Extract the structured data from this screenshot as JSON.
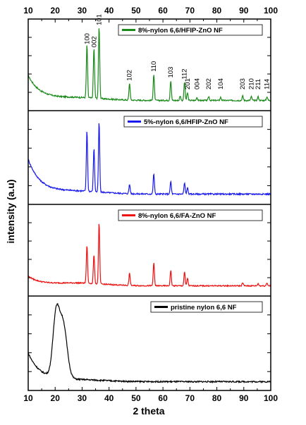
{
  "chart_data": {
    "type": "line",
    "xlabel": "2 theta",
    "ylabel": "intensity (a.u)",
    "xlim": [
      10,
      100
    ],
    "xticks": [
      "10",
      "20",
      "30",
      "40",
      "50",
      "60",
      "70",
      "80",
      "90",
      "100"
    ],
    "panels": [
      {
        "legend": "8%-nylon 6,6/HFIP-ZnO NF",
        "color": "#1a8a1a",
        "baseline_start": 0.38,
        "baseline_end": 0.06,
        "noise": 0.018,
        "hump": [],
        "peaks": [
          {
            "x": 31.8,
            "h": 0.7
          },
          {
            "x": 34.4,
            "h": 0.66
          },
          {
            "x": 36.3,
            "h": 0.95
          },
          {
            "x": 47.6,
            "h": 0.22
          },
          {
            "x": 56.6,
            "h": 0.34
          },
          {
            "x": 62.9,
            "h": 0.26
          },
          {
            "x": 66.4,
            "h": 0.06
          },
          {
            "x": 68.0,
            "h": 0.24
          },
          {
            "x": 69.1,
            "h": 0.1
          },
          {
            "x": 72.6,
            "h": 0.04
          },
          {
            "x": 77.0,
            "h": 0.05
          },
          {
            "x": 81.4,
            "h": 0.04
          },
          {
            "x": 89.6,
            "h": 0.06
          },
          {
            "x": 92.8,
            "h": 0.05
          },
          {
            "x": 95.3,
            "h": 0.05
          },
          {
            "x": 98.6,
            "h": 0.05
          }
        ],
        "peak_labels": [
          {
            "text": "100",
            "x": 31.8
          },
          {
            "text": "002",
            "x": 34.4
          },
          {
            "text": "101",
            "x": 36.3
          },
          {
            "text": "102",
            "x": 47.6
          },
          {
            "text": "110",
            "x": 56.6
          },
          {
            "text": "103",
            "x": 62.9
          },
          {
            "text": "112",
            "x": 68.0
          },
          {
            "text": "201",
            "x": 69.1
          },
          {
            "text": "004",
            "x": 72.6
          },
          {
            "text": "202",
            "x": 77.0
          },
          {
            "text": "104",
            "x": 81.4
          },
          {
            "text": "203",
            "x": 89.6
          },
          {
            "text": "210",
            "x": 92.8
          },
          {
            "text": "211",
            "x": 95.3
          },
          {
            "text": "114",
            "x": 98.6
          }
        ]
      },
      {
        "legend": "5%-nylon 6,6/HFIP-ZnO NF",
        "color": "#1a1aee",
        "baseline_start": 0.5,
        "baseline_end": 0.06,
        "noise": 0.018,
        "hump": [],
        "peaks": [
          {
            "x": 31.8,
            "h": 0.78
          },
          {
            "x": 34.4,
            "h": 0.56
          },
          {
            "x": 36.3,
            "h": 0.9
          },
          {
            "x": 47.6,
            "h": 0.12
          },
          {
            "x": 56.6,
            "h": 0.26
          },
          {
            "x": 62.9,
            "h": 0.16
          },
          {
            "x": 68.0,
            "h": 0.14
          },
          {
            "x": 69.1,
            "h": 0.08
          }
        ],
        "peak_labels": []
      },
      {
        "legend": "8%-nylon 6,6/FA-ZnO NF",
        "color": "#ee1111",
        "baseline_start": 0.18,
        "baseline_end": 0.06,
        "noise": 0.015,
        "hump": [],
        "peaks": [
          {
            "x": 31.8,
            "h": 0.5
          },
          {
            "x": 34.4,
            "h": 0.38
          },
          {
            "x": 36.3,
            "h": 0.8
          },
          {
            "x": 47.6,
            "h": 0.16
          },
          {
            "x": 56.6,
            "h": 0.3
          },
          {
            "x": 62.9,
            "h": 0.2
          },
          {
            "x": 68.0,
            "h": 0.18
          },
          {
            "x": 69.1,
            "h": 0.1
          },
          {
            "x": 89.6,
            "h": 0.04
          },
          {
            "x": 95.3,
            "h": 0.03
          },
          {
            "x": 98.6,
            "h": 0.04
          }
        ],
        "peak_labels": []
      },
      {
        "legend": "pristine nylon 6,6 NF",
        "color": "#000000",
        "baseline_start": 0.4,
        "baseline_end": 0.04,
        "noise": 0.018,
        "hump": [
          {
            "x": 20.3,
            "h": 0.65,
            "w": 1.6
          },
          {
            "x": 23.0,
            "h": 0.55,
            "w": 2.0
          },
          {
            "x": 21.7,
            "h": 0.2,
            "w": 2.8
          }
        ],
        "peaks": [],
        "peak_labels": []
      }
    ]
  }
}
